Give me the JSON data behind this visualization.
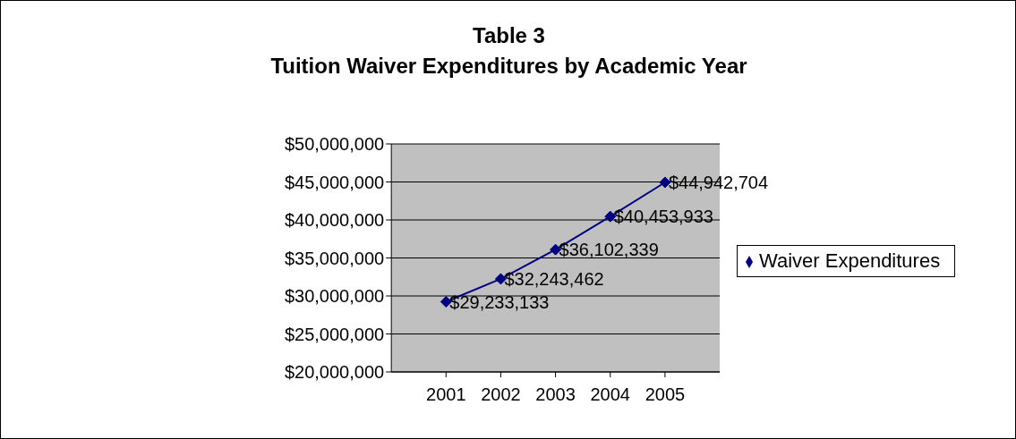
{
  "chart_data": {
    "type": "line",
    "title": "Table 3\nTuition Waiver Expenditures by Academic Year",
    "categories": [
      "2001",
      "2002",
      "2003",
      "2004",
      "2005"
    ],
    "series": [
      {
        "name": "Waiver Expenditures",
        "color": "#000080",
        "values": [
          29233133,
          32243462,
          36102339,
          40453933,
          44942704
        ],
        "value_labels": [
          "$29,233,133",
          "$32,243,462",
          "$36,102,339",
          "$40,453,933",
          "$44,942,704"
        ]
      }
    ],
    "ylim": [
      20000000,
      50000000
    ],
    "yticks": [
      {
        "value": 20000000,
        "label": "$20,000,000"
      },
      {
        "value": 25000000,
        "label": "$25,000,000"
      },
      {
        "value": 30000000,
        "label": "$30,000,000"
      },
      {
        "value": 35000000,
        "label": "$35,000,000"
      },
      {
        "value": 40000000,
        "label": "$40,000,000"
      },
      {
        "value": 45000000,
        "label": "$45,000,000"
      },
      {
        "value": 50000000,
        "label": "$50,000,000"
      }
    ],
    "grid": "y",
    "legend": "right",
    "marker": "diamond",
    "line_style": "solid"
  }
}
